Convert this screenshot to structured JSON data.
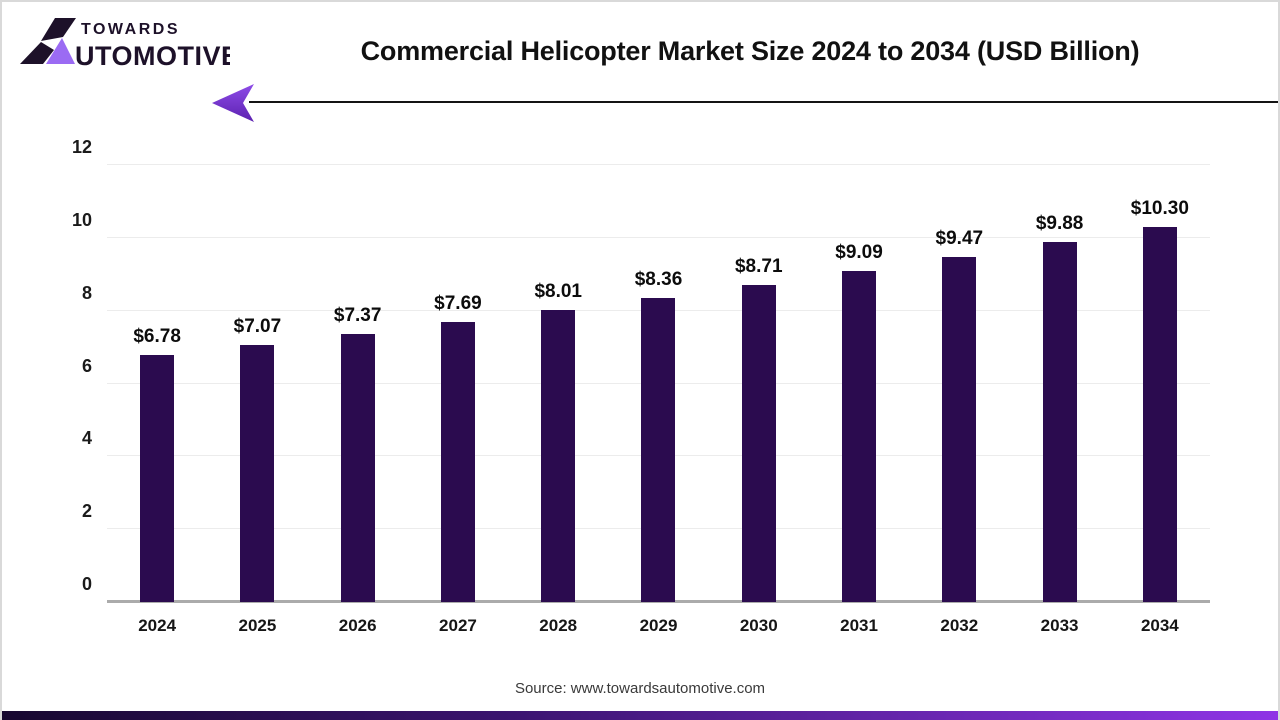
{
  "header": {
    "logo": {
      "top_text": "TOWARDS",
      "bottom_text": "UTOMOTIVE",
      "text_color": "#1d1129",
      "accent_color": "#9b6bf3"
    },
    "title": "Commercial Helicopter Market Size 2024 to 2034 (USD Billion)"
  },
  "footer": {
    "source_text": "Source: www.towardsautomotive.com"
  },
  "colors": {
    "bar_fill": "#2B0B4F",
    "gridline": "#ececec",
    "axis_line": "#ababab",
    "arrow_gradient_top": "#8e4ce8",
    "arrow_gradient_bottom": "#5c21b0",
    "footer_gradient_left": "#170830",
    "footer_gradient_mid": "#3b1470",
    "footer_gradient_right": "#8f35e6"
  },
  "chart_data": {
    "type": "bar",
    "title": "Commercial Helicopter Market Size 2024 to 2034 (USD Billion)",
    "categories": [
      "2024",
      "2025",
      "2026",
      "2027",
      "2028",
      "2029",
      "2030",
      "2031",
      "2032",
      "2033",
      "2034"
    ],
    "values": [
      6.78,
      7.07,
      7.37,
      7.69,
      8.01,
      8.36,
      8.71,
      9.09,
      9.47,
      9.88,
      10.3
    ],
    "bar_labels": [
      "$6.78",
      "$7.07",
      "$7.37",
      "$7.69",
      "$8.01",
      "$8.36",
      "$8.71",
      "$9.09",
      "$9.47",
      "$9.88",
      "$10.30"
    ],
    "xlabel": "",
    "ylabel": "",
    "ylim": [
      0,
      12
    ],
    "yticks": [
      0,
      2,
      4,
      6,
      8,
      10,
      12
    ],
    "grid": true,
    "legend": "none",
    "bar_color": "#2B0B4F"
  }
}
